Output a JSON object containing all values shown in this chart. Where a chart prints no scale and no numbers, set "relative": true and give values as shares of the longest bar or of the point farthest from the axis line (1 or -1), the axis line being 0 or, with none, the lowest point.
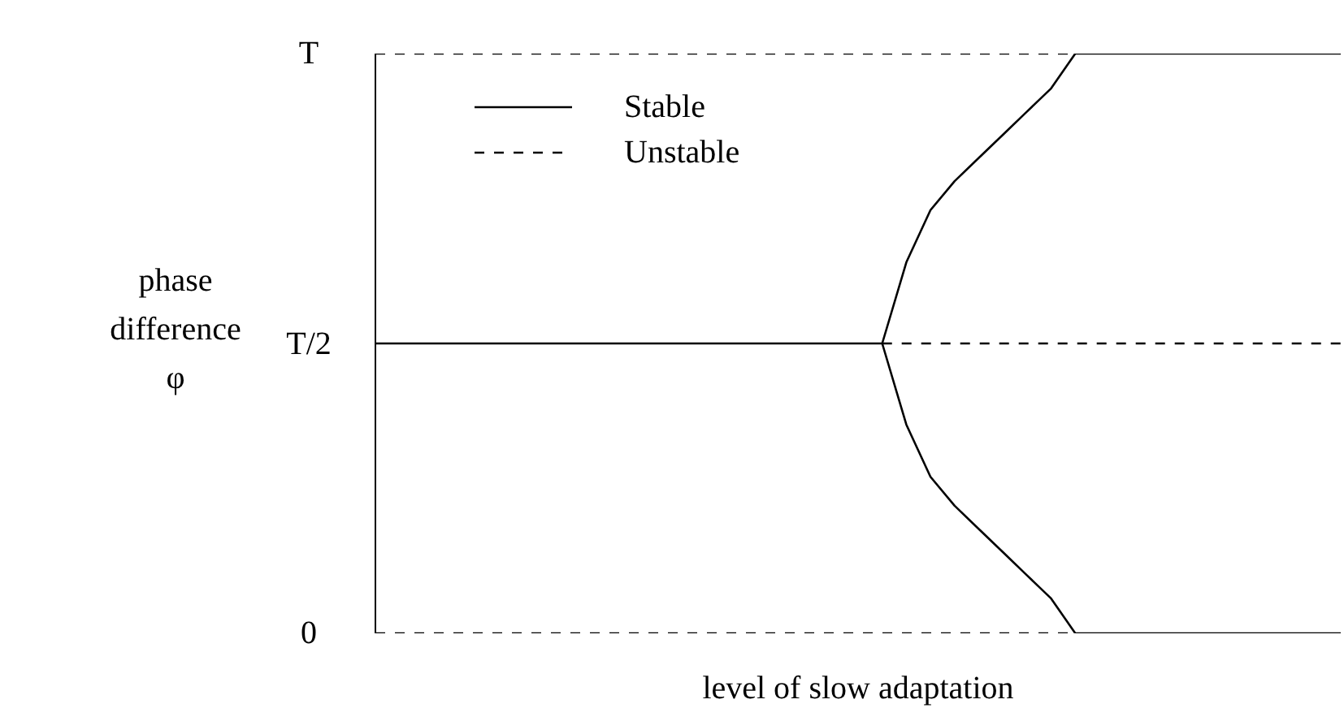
{
  "chart_data": {
    "type": "line",
    "xlabel": "level of slow adaptation",
    "ylabel": "phase difference φ",
    "relative": true,
    "annotations": [
      "T",
      "T/2",
      "0"
    ],
    "legend": "top left",
    "marker": "none",
    "categories": [
      null,
      null,
      null,
      null,
      null,
      null,
      null,
      null,
      null,
      null,
      null,
      null,
      null,
      null,
      null,
      null,
      null,
      null,
      null,
      null,
      null,
      null,
      null,
      null,
      null,
      null,
      null,
      null,
      null,
      null,
      null,
      null,
      null,
      null,
      null,
      null,
      null,
      null,
      null,
      null,
      null
    ],
    "series": [
      {
        "name": "Stable",
        "color": "#000000",
        "line_style": "solid",
        "values": [
          0.5,
          0.5,
          0.5,
          0.5,
          0.5,
          0.5,
          0.5,
          0.5,
          0.5,
          0.5,
          0.5,
          0.5,
          0.5,
          0.5,
          0.5,
          0.5,
          0.5,
          0.5,
          0.5,
          0.5,
          0.5,
          0.5,
          null,
          null,
          null,
          null,
          null,
          null,
          null,
          null,
          null,
          null,
          null,
          null,
          null,
          null,
          null,
          null,
          null,
          null,
          null
        ]
      },
      {
        "color": "#000000",
        "line_style": "solid",
        "values": [
          null,
          null,
          null,
          null,
          null,
          null,
          null,
          null,
          null,
          null,
          null,
          null,
          null,
          null,
          null,
          null,
          null,
          null,
          null,
          null,
          null,
          0.5,
          0.64,
          0.73,
          0.78,
          0.82,
          0.86,
          0.9,
          0.94,
          1,
          1,
          1,
          1,
          1,
          1,
          1,
          1,
          1,
          1,
          1,
          1
        ]
      },
      {
        "color": "#000000",
        "line_style": "solid",
        "values": [
          null,
          null,
          null,
          null,
          null,
          null,
          null,
          null,
          null,
          null,
          null,
          null,
          null,
          null,
          null,
          null,
          null,
          null,
          null,
          null,
          null,
          0.5,
          0.36,
          0.27,
          0.22,
          0.18,
          0.14,
          0.1,
          0.06,
          0,
          0,
          0,
          0,
          0,
          0,
          0,
          0,
          0,
          0,
          0,
          0
        ]
      },
      {
        "name": "Unstable",
        "color": "#000000",
        "line_style": "dashed",
        "values": [
          1,
          1,
          1,
          1,
          1,
          1,
          1,
          1,
          1,
          1,
          1,
          1,
          1,
          1,
          1,
          1,
          1,
          1,
          1,
          1,
          1,
          1,
          1,
          1,
          1,
          1,
          1,
          1,
          1,
          1,
          null,
          null,
          null,
          null,
          null,
          null,
          null,
          null,
          null,
          null,
          null
        ]
      },
      {
        "color": "#000000",
        "line_style": "dashed",
        "values": [
          0,
          0,
          0,
          0,
          0,
          0,
          0,
          0,
          0,
          0,
          0,
          0,
          0,
          0,
          0,
          0,
          0,
          0,
          0,
          0,
          0,
          0,
          0,
          0,
          0,
          0,
          0,
          0,
          0,
          0,
          null,
          null,
          null,
          null,
          null,
          null,
          null,
          null,
          null,
          null,
          null
        ]
      },
      {
        "color": "#000000",
        "line_style": "dashed",
        "values": [
          null,
          null,
          null,
          null,
          null,
          null,
          null,
          null,
          null,
          null,
          null,
          null,
          null,
          null,
          null,
          null,
          null,
          null,
          null,
          null,
          null,
          0.5,
          0.5,
          0.5,
          0.5,
          0.5,
          0.5,
          0.5,
          0.5,
          0.5,
          0.5,
          0.5,
          0.5,
          0.5,
          0.5,
          0.5,
          0.5,
          0.5,
          0.5,
          0.5,
          0.5
        ]
      }
    ]
  }
}
